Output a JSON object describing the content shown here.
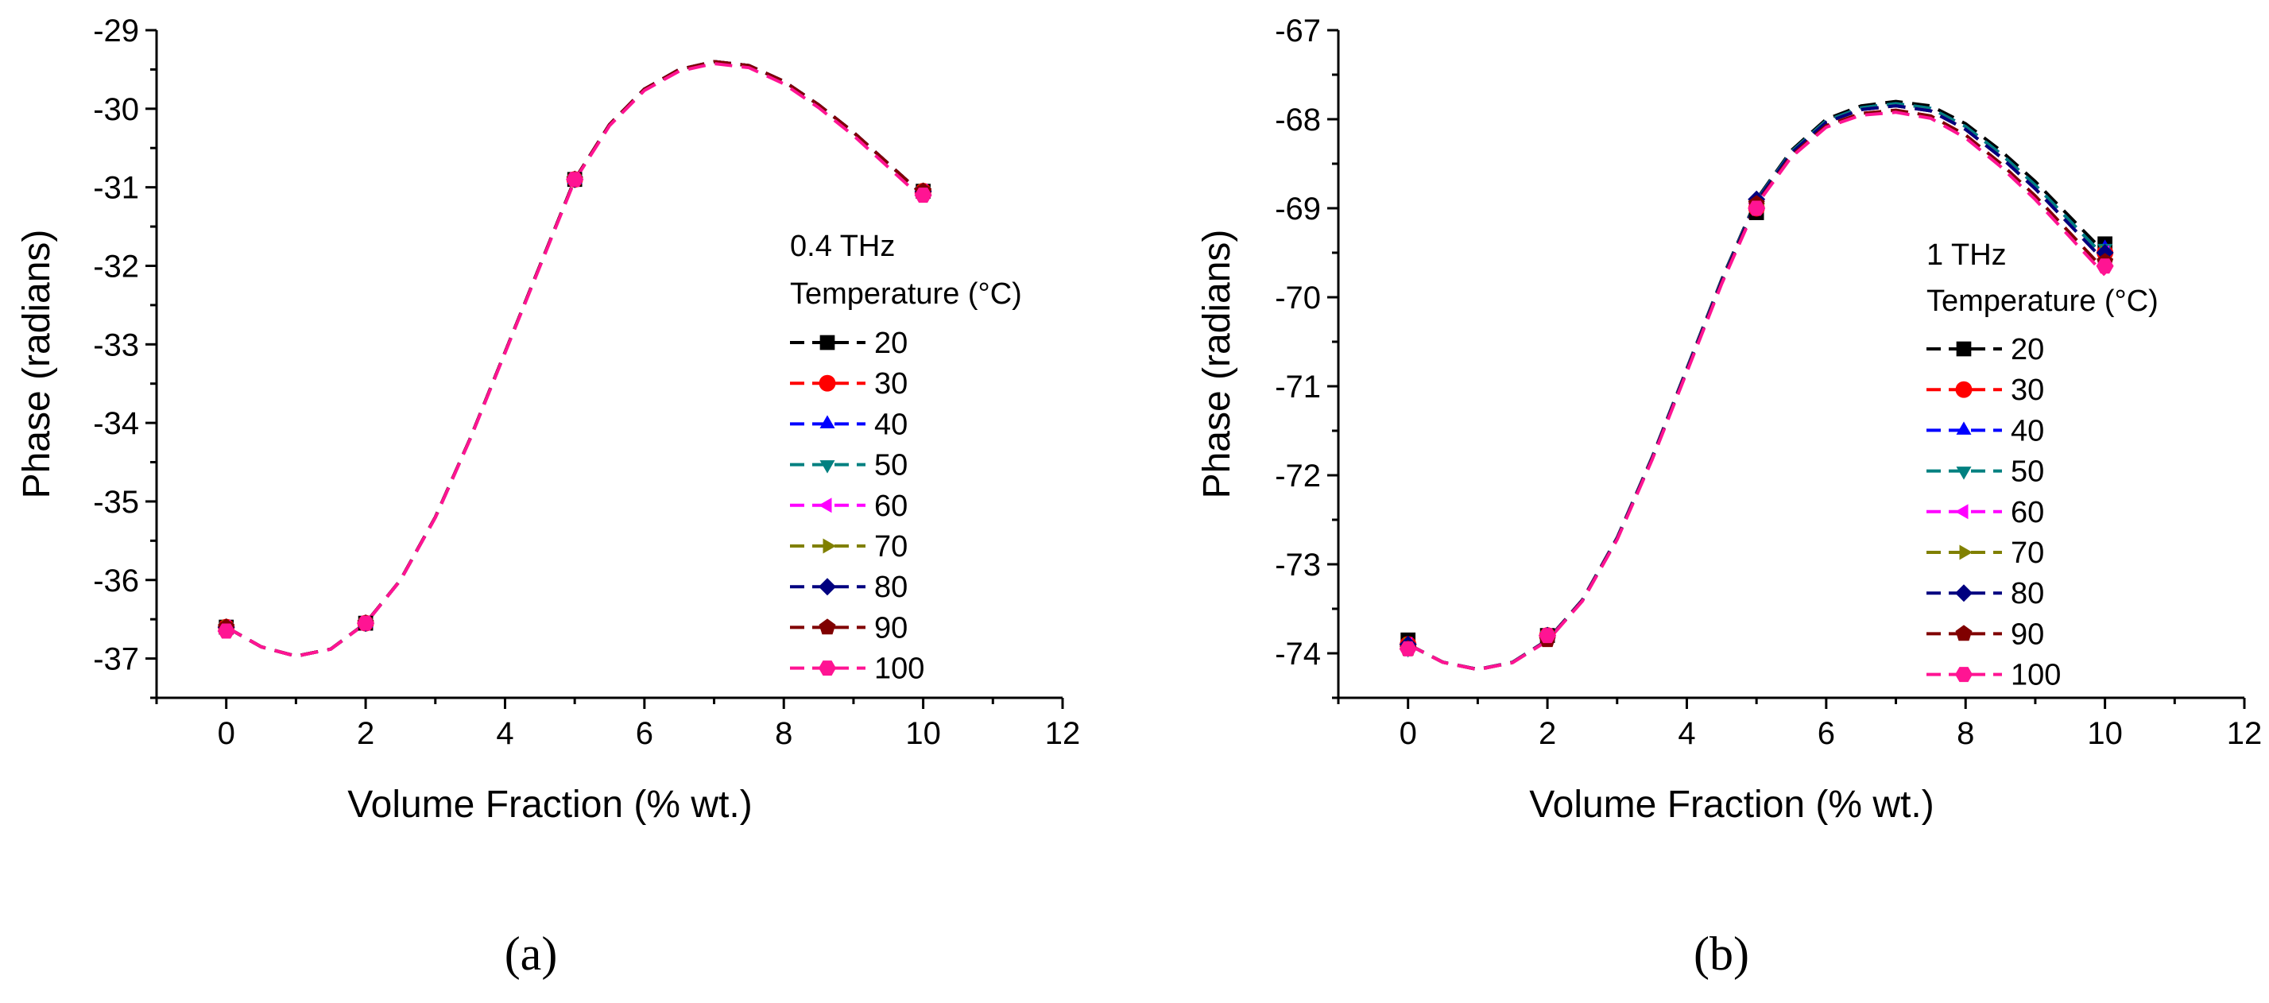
{
  "chart_data": [
    {
      "type": "line",
      "panel_label": "(a)",
      "xlabel": "Volume Fraction (% wt.)",
      "ylabel": "Phase (radians)",
      "xlim": [
        -1,
        12
      ],
      "ylim": [
        -37.5,
        -29
      ],
      "xticks": [
        0,
        2,
        4,
        6,
        8,
        10,
        12
      ],
      "yticks": [
        -37,
        -36,
        -35,
        -34,
        -33,
        -32,
        -31,
        -30,
        -29
      ],
      "legend_title": "0.4 THz",
      "legend_subtitle": "Temperature (°C)",
      "legend_position": "right-middle",
      "grid": false,
      "x": [
        0,
        2,
        5,
        10
      ],
      "curve": {
        "x": [
          0,
          0.5,
          1,
          1.5,
          2,
          2.5,
          3,
          3.5,
          4,
          4.5,
          5,
          5.5,
          6,
          6.5,
          7,
          7.5,
          8,
          8.5,
          9,
          9.5,
          10
        ],
        "y": [
          -36.6,
          -36.85,
          -36.97,
          -36.88,
          -36.55,
          -36.0,
          -35.2,
          -34.2,
          -33.1,
          -32.0,
          -30.9,
          -30.2,
          -29.75,
          -29.5,
          -29.4,
          -29.45,
          -29.65,
          -29.95,
          -30.3,
          -30.7,
          -31.1
        ]
      },
      "series": [
        {
          "name": "20",
          "color": "#000000",
          "marker": "square",
          "values": [
            -36.6,
            -36.55,
            -30.9,
            -31.05
          ]
        },
        {
          "name": "30",
          "color": "#ff0000",
          "marker": "circle",
          "values": [
            -36.6,
            -36.55,
            -30.9,
            -31.05
          ]
        },
        {
          "name": "40",
          "color": "#0000ff",
          "marker": "triangle-up",
          "values": [
            -36.6,
            -36.55,
            -30.9,
            -31.05
          ]
        },
        {
          "name": "50",
          "color": "#008080",
          "marker": "triangle-down",
          "values": [
            -36.6,
            -36.55,
            -30.9,
            -31.05
          ]
        },
        {
          "name": "60",
          "color": "#ff00ff",
          "marker": "triangle-left",
          "values": [
            -36.6,
            -36.55,
            -30.9,
            -31.05
          ]
        },
        {
          "name": "70",
          "color": "#808000",
          "marker": "triangle-right",
          "values": [
            -36.6,
            -36.55,
            -30.9,
            -31.05
          ]
        },
        {
          "name": "80",
          "color": "#000080",
          "marker": "diamond",
          "values": [
            -36.6,
            -36.55,
            -30.9,
            -31.05
          ]
        },
        {
          "name": "90",
          "color": "#800000",
          "marker": "pentagon",
          "values": [
            -36.6,
            -36.55,
            -30.9,
            -31.05
          ]
        },
        {
          "name": "100",
          "color": "#ff1493",
          "marker": "hexagon",
          "values": [
            -36.65,
            -36.55,
            -30.9,
            -31.1
          ]
        }
      ]
    },
    {
      "type": "line",
      "panel_label": "(b)",
      "xlabel": "Volume Fraction (% wt.)",
      "ylabel": "Phase (radians)",
      "xlim": [
        -1,
        12
      ],
      "ylim": [
        -74.5,
        -67
      ],
      "xticks": [
        0,
        2,
        4,
        6,
        8,
        10,
        12
      ],
      "yticks": [
        -74,
        -73,
        -72,
        -71,
        -70,
        -69,
        -68,
        -67
      ],
      "legend_title": "1 THz",
      "legend_subtitle": "Temperature (°C)",
      "legend_position": "right-middle",
      "grid": false,
      "x": [
        0,
        2,
        5,
        10
      ],
      "curve": {
        "x": [
          0,
          0.5,
          1,
          1.5,
          2,
          2.5,
          3,
          3.5,
          4,
          4.5,
          5,
          5.5,
          6,
          6.5,
          7,
          7.5,
          8,
          8.5,
          9,
          9.5,
          10
        ],
        "y": [
          -73.9,
          -74.1,
          -74.18,
          -74.1,
          -73.85,
          -73.4,
          -72.7,
          -71.8,
          -70.8,
          -69.8,
          -68.9,
          -68.35,
          -68.0,
          -67.85,
          -67.8,
          -67.85,
          -68.05,
          -68.35,
          -68.7,
          -69.1,
          -69.5
        ]
      },
      "series": [
        {
          "name": "20",
          "color": "#000000",
          "marker": "square",
          "values": [
            -73.85,
            -73.8,
            -69.05,
            -69.4
          ]
        },
        {
          "name": "30",
          "color": "#ff0000",
          "marker": "circle",
          "values": [
            -73.9,
            -73.8,
            -69.0,
            -69.5
          ]
        },
        {
          "name": "40",
          "color": "#0000ff",
          "marker": "triangle-up",
          "values": [
            -73.9,
            -73.8,
            -68.9,
            -69.45
          ]
        },
        {
          "name": "50",
          "color": "#008080",
          "marker": "triangle-down",
          "values": [
            -73.95,
            -73.8,
            -68.95,
            -69.45
          ]
        },
        {
          "name": "60",
          "color": "#ff00ff",
          "marker": "triangle-left",
          "values": [
            -73.9,
            -73.8,
            -68.95,
            -69.5
          ]
        },
        {
          "name": "70",
          "color": "#808000",
          "marker": "triangle-right",
          "values": [
            -73.9,
            -73.8,
            -68.95,
            -69.5
          ]
        },
        {
          "name": "80",
          "color": "#000080",
          "marker": "diamond",
          "values": [
            -73.9,
            -73.8,
            -68.9,
            -69.5
          ]
        },
        {
          "name": "90",
          "color": "#800000",
          "marker": "pentagon",
          "values": [
            -73.95,
            -73.85,
            -68.95,
            -69.6
          ]
        },
        {
          "name": "100",
          "color": "#ff1493",
          "marker": "hexagon",
          "values": [
            -73.95,
            -73.8,
            -69.0,
            -69.65
          ]
        }
      ]
    }
  ]
}
